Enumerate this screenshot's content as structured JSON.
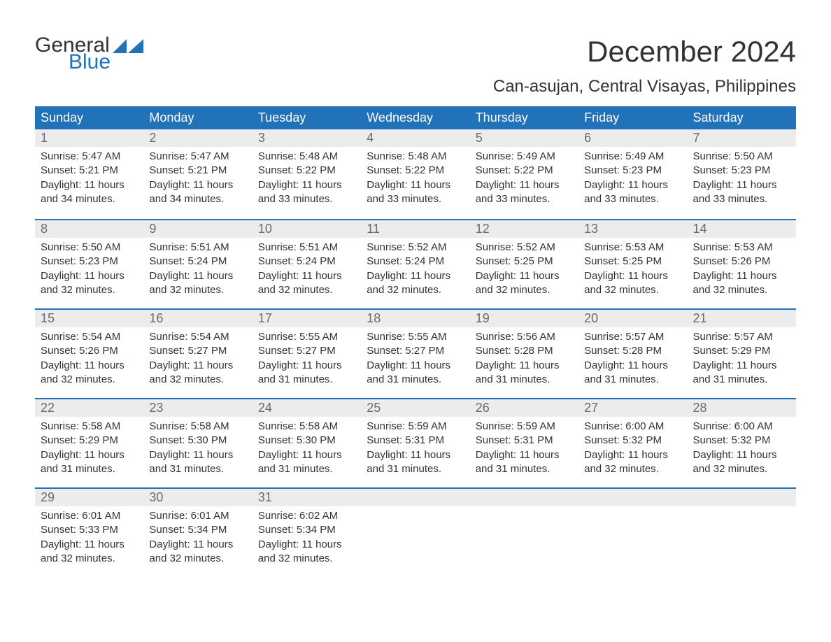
{
  "brand": {
    "line1": "General",
    "line2": "Blue",
    "tri_color": "#2172b8"
  },
  "title": "December 2024",
  "subtitle": "Can-asujan, Central Visayas, Philippines",
  "header_bg": "#2172b8",
  "header_fg": "#ffffff",
  "daynum_bg": "#ececec",
  "daynum_fg": "#6b6b6b",
  "week_border": "#2172b8",
  "text_color": "#333333",
  "background": "#ffffff",
  "day_names": [
    "Sunday",
    "Monday",
    "Tuesday",
    "Wednesday",
    "Thursday",
    "Friday",
    "Saturday"
  ],
  "weeks": [
    [
      {
        "n": "1",
        "sr": "Sunrise: 5:47 AM",
        "ss": "Sunset: 5:21 PM",
        "d1": "Daylight: 11 hours",
        "d2": "and 34 minutes."
      },
      {
        "n": "2",
        "sr": "Sunrise: 5:47 AM",
        "ss": "Sunset: 5:21 PM",
        "d1": "Daylight: 11 hours",
        "d2": "and 34 minutes."
      },
      {
        "n": "3",
        "sr": "Sunrise: 5:48 AM",
        "ss": "Sunset: 5:22 PM",
        "d1": "Daylight: 11 hours",
        "d2": "and 33 minutes."
      },
      {
        "n": "4",
        "sr": "Sunrise: 5:48 AM",
        "ss": "Sunset: 5:22 PM",
        "d1": "Daylight: 11 hours",
        "d2": "and 33 minutes."
      },
      {
        "n": "5",
        "sr": "Sunrise: 5:49 AM",
        "ss": "Sunset: 5:22 PM",
        "d1": "Daylight: 11 hours",
        "d2": "and 33 minutes."
      },
      {
        "n": "6",
        "sr": "Sunrise: 5:49 AM",
        "ss": "Sunset: 5:23 PM",
        "d1": "Daylight: 11 hours",
        "d2": "and 33 minutes."
      },
      {
        "n": "7",
        "sr": "Sunrise: 5:50 AM",
        "ss": "Sunset: 5:23 PM",
        "d1": "Daylight: 11 hours",
        "d2": "and 33 minutes."
      }
    ],
    [
      {
        "n": "8",
        "sr": "Sunrise: 5:50 AM",
        "ss": "Sunset: 5:23 PM",
        "d1": "Daylight: 11 hours",
        "d2": "and 32 minutes."
      },
      {
        "n": "9",
        "sr": "Sunrise: 5:51 AM",
        "ss": "Sunset: 5:24 PM",
        "d1": "Daylight: 11 hours",
        "d2": "and 32 minutes."
      },
      {
        "n": "10",
        "sr": "Sunrise: 5:51 AM",
        "ss": "Sunset: 5:24 PM",
        "d1": "Daylight: 11 hours",
        "d2": "and 32 minutes."
      },
      {
        "n": "11",
        "sr": "Sunrise: 5:52 AM",
        "ss": "Sunset: 5:24 PM",
        "d1": "Daylight: 11 hours",
        "d2": "and 32 minutes."
      },
      {
        "n": "12",
        "sr": "Sunrise: 5:52 AM",
        "ss": "Sunset: 5:25 PM",
        "d1": "Daylight: 11 hours",
        "d2": "and 32 minutes."
      },
      {
        "n": "13",
        "sr": "Sunrise: 5:53 AM",
        "ss": "Sunset: 5:25 PM",
        "d1": "Daylight: 11 hours",
        "d2": "and 32 minutes."
      },
      {
        "n": "14",
        "sr": "Sunrise: 5:53 AM",
        "ss": "Sunset: 5:26 PM",
        "d1": "Daylight: 11 hours",
        "d2": "and 32 minutes."
      }
    ],
    [
      {
        "n": "15",
        "sr": "Sunrise: 5:54 AM",
        "ss": "Sunset: 5:26 PM",
        "d1": "Daylight: 11 hours",
        "d2": "and 32 minutes."
      },
      {
        "n": "16",
        "sr": "Sunrise: 5:54 AM",
        "ss": "Sunset: 5:27 PM",
        "d1": "Daylight: 11 hours",
        "d2": "and 32 minutes."
      },
      {
        "n": "17",
        "sr": "Sunrise: 5:55 AM",
        "ss": "Sunset: 5:27 PM",
        "d1": "Daylight: 11 hours",
        "d2": "and 31 minutes."
      },
      {
        "n": "18",
        "sr": "Sunrise: 5:55 AM",
        "ss": "Sunset: 5:27 PM",
        "d1": "Daylight: 11 hours",
        "d2": "and 31 minutes."
      },
      {
        "n": "19",
        "sr": "Sunrise: 5:56 AM",
        "ss": "Sunset: 5:28 PM",
        "d1": "Daylight: 11 hours",
        "d2": "and 31 minutes."
      },
      {
        "n": "20",
        "sr": "Sunrise: 5:57 AM",
        "ss": "Sunset: 5:28 PM",
        "d1": "Daylight: 11 hours",
        "d2": "and 31 minutes."
      },
      {
        "n": "21",
        "sr": "Sunrise: 5:57 AM",
        "ss": "Sunset: 5:29 PM",
        "d1": "Daylight: 11 hours",
        "d2": "and 31 minutes."
      }
    ],
    [
      {
        "n": "22",
        "sr": "Sunrise: 5:58 AM",
        "ss": "Sunset: 5:29 PM",
        "d1": "Daylight: 11 hours",
        "d2": "and 31 minutes."
      },
      {
        "n": "23",
        "sr": "Sunrise: 5:58 AM",
        "ss": "Sunset: 5:30 PM",
        "d1": "Daylight: 11 hours",
        "d2": "and 31 minutes."
      },
      {
        "n": "24",
        "sr": "Sunrise: 5:58 AM",
        "ss": "Sunset: 5:30 PM",
        "d1": "Daylight: 11 hours",
        "d2": "and 31 minutes."
      },
      {
        "n": "25",
        "sr": "Sunrise: 5:59 AM",
        "ss": "Sunset: 5:31 PM",
        "d1": "Daylight: 11 hours",
        "d2": "and 31 minutes."
      },
      {
        "n": "26",
        "sr": "Sunrise: 5:59 AM",
        "ss": "Sunset: 5:31 PM",
        "d1": "Daylight: 11 hours",
        "d2": "and 31 minutes."
      },
      {
        "n": "27",
        "sr": "Sunrise: 6:00 AM",
        "ss": "Sunset: 5:32 PM",
        "d1": "Daylight: 11 hours",
        "d2": "and 32 minutes."
      },
      {
        "n": "28",
        "sr": "Sunrise: 6:00 AM",
        "ss": "Sunset: 5:32 PM",
        "d1": "Daylight: 11 hours",
        "d2": "and 32 minutes."
      }
    ],
    [
      {
        "n": "29",
        "sr": "Sunrise: 6:01 AM",
        "ss": "Sunset: 5:33 PM",
        "d1": "Daylight: 11 hours",
        "d2": "and 32 minutes."
      },
      {
        "n": "30",
        "sr": "Sunrise: 6:01 AM",
        "ss": "Sunset: 5:34 PM",
        "d1": "Daylight: 11 hours",
        "d2": "and 32 minutes."
      },
      {
        "n": "31",
        "sr": "Sunrise: 6:02 AM",
        "ss": "Sunset: 5:34 PM",
        "d1": "Daylight: 11 hours",
        "d2": "and 32 minutes."
      },
      {
        "n": "",
        "sr": "",
        "ss": "",
        "d1": "",
        "d2": ""
      },
      {
        "n": "",
        "sr": "",
        "ss": "",
        "d1": "",
        "d2": ""
      },
      {
        "n": "",
        "sr": "",
        "ss": "",
        "d1": "",
        "d2": ""
      },
      {
        "n": "",
        "sr": "",
        "ss": "",
        "d1": "",
        "d2": ""
      }
    ]
  ]
}
